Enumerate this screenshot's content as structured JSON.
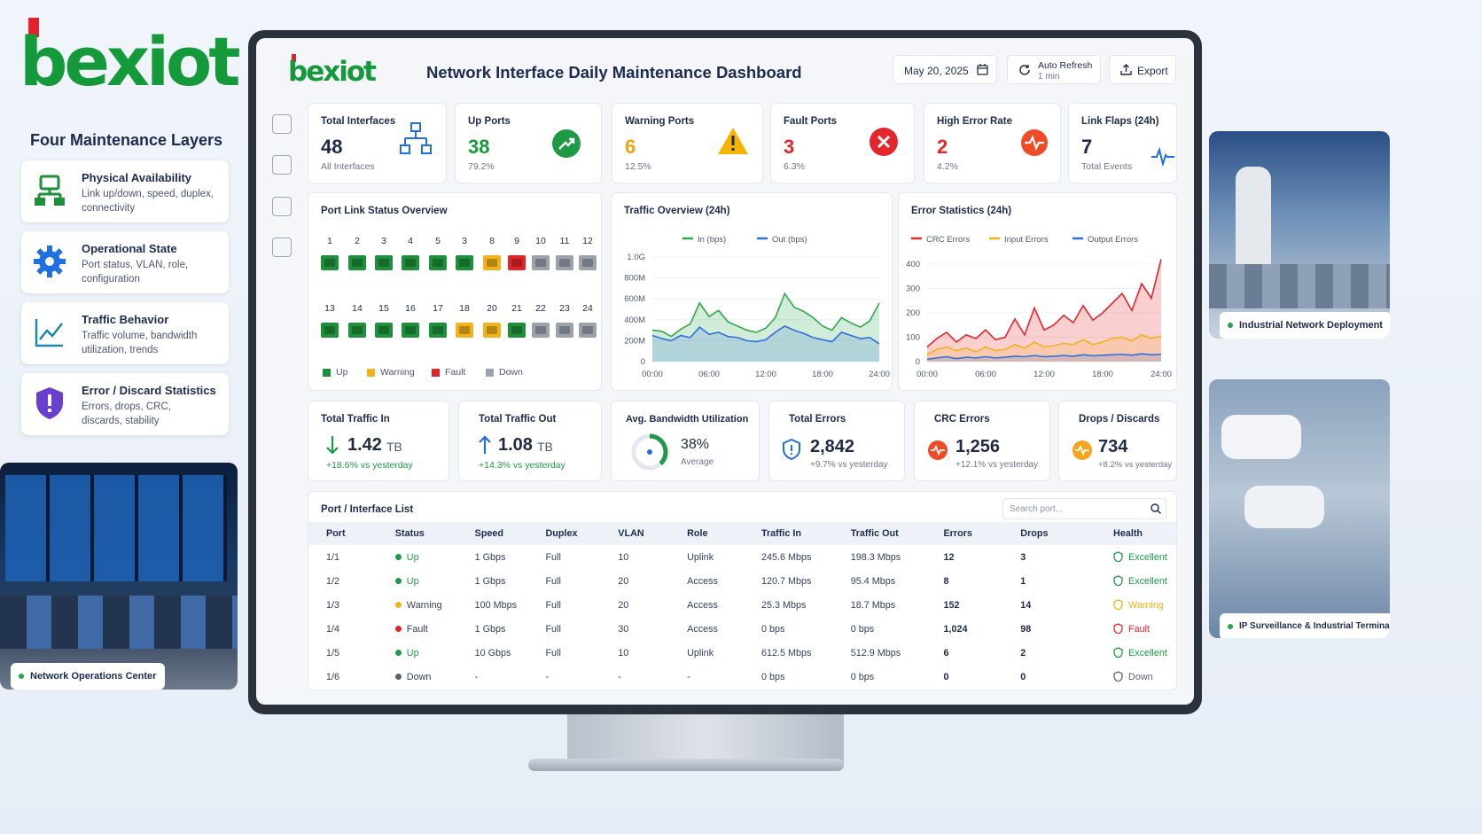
{
  "brand": {
    "name": "bexiot",
    "accent": "#159a3b",
    "logo_red": "#e3202c"
  },
  "left": {
    "title": "Four Maintenance Layers",
    "layers": [
      {
        "title": "Physical Availability",
        "desc": "Link up/down, speed, duplex, connectivity",
        "icon": "ethernet-icon"
      },
      {
        "title": "Operational State",
        "desc": "Port status, VLAN, role, configuration",
        "icon": "gear-icon"
      },
      {
        "title": "Traffic Behavior",
        "desc": "Traffic volume, bandwidth utilization, trends",
        "icon": "trend-icon"
      },
      {
        "title": "Error / Discard Statistics",
        "desc": "Errors, drops, CRC, discards, stability",
        "icon": "shield-alert-icon"
      }
    ],
    "photo_caption": "Network Operations Center"
  },
  "right": {
    "photo1_caption": "Industrial Network Deployment",
    "photo2_caption": "IP Surveillance & Industrial Terminals"
  },
  "header": {
    "title": "Network Interface Daily Maintenance Dashboard",
    "date": "May 20, 2025",
    "refresh_label": "Auto Refresh",
    "refresh_interval": "1 min",
    "export_label": "Export"
  },
  "kpis": [
    {
      "title": "Total Interfaces",
      "value": "48",
      "sub": "All Interfaces",
      "color": "#1c2b4f",
      "icon": "topology-icon"
    },
    {
      "title": "Up Ports",
      "value": "38",
      "sub": "79.2%",
      "color": "#159a3b",
      "icon": "trend-up-icon"
    },
    {
      "title": "Warning Ports",
      "value": "6",
      "sub": "12.5%",
      "color": "#f0a30a",
      "icon": "warning-icon"
    },
    {
      "title": "Fault Ports",
      "value": "3",
      "sub": "6.3%",
      "color": "#e2262b",
      "icon": "x-circle-icon"
    },
    {
      "title": "High Error Rate",
      "value": "2",
      "sub": "4.2%",
      "color": "#e2262b",
      "icon": "pulse-icon"
    },
    {
      "title": "Link Flaps (24h)",
      "value": "7",
      "sub": "Total Events",
      "color": "#1c2b4f",
      "icon": "heartbeat-icon"
    }
  ],
  "port_status": {
    "title": "Port Link Status Overview",
    "row1_labels": [
      "1",
      "2",
      "3",
      "4",
      "5",
      "3",
      "8",
      "9",
      "10",
      "11",
      "12"
    ],
    "row1_states": [
      "up",
      "up",
      "up",
      "up",
      "up",
      "up",
      "warning",
      "fault",
      "down",
      "down",
      "down"
    ],
    "row2_labels": [
      "13",
      "14",
      "15",
      "16",
      "17",
      "18",
      "20",
      "21",
      "22",
      "23",
      "24"
    ],
    "row2_states": [
      "up",
      "up",
      "up",
      "up",
      "up",
      "warning",
      "warning",
      "up",
      "down",
      "down",
      "down"
    ],
    "legend": [
      "Up",
      "Warning",
      "Fault",
      "Down"
    ],
    "colors": {
      "up": "#1e8f3a",
      "warning": "#f2b21b",
      "fault": "#e02428",
      "down": "#9ba2ad"
    }
  },
  "traffic_chart": {
    "title": "Traffic Overview (24h)",
    "chart_data": {
      "type": "area",
      "x": [
        0,
        1,
        2,
        3,
        4,
        5,
        6,
        7,
        8,
        9,
        10,
        11,
        12,
        13,
        14,
        15,
        16,
        17,
        18,
        19,
        20,
        21,
        22,
        23,
        24
      ],
      "xticks": [
        "00:00",
        "06:00",
        "12:00",
        "18:00",
        "24:00"
      ],
      "yticks": [
        "0",
        "200M",
        "400M",
        "600M",
        "800M",
        "1.0G"
      ],
      "ylim": [
        0,
        1000
      ],
      "series": [
        {
          "name": "In (bps)",
          "color": "#2fa84f",
          "values": [
            300,
            290,
            240,
            310,
            360,
            560,
            430,
            490,
            380,
            340,
            300,
            280,
            320,
            420,
            650,
            520,
            480,
            420,
            340,
            300,
            420,
            370,
            330,
            390,
            560
          ]
        },
        {
          "name": "Out (bps)",
          "color": "#2f6fde",
          "values": [
            250,
            220,
            200,
            250,
            230,
            330,
            260,
            280,
            240,
            230,
            200,
            190,
            210,
            280,
            340,
            300,
            270,
            230,
            210,
            190,
            280,
            250,
            220,
            230,
            170
          ]
        }
      ]
    }
  },
  "error_chart": {
    "title": "Error Statistics (24h)",
    "chart_data": {
      "type": "area",
      "x": [
        0,
        1,
        2,
        3,
        4,
        5,
        6,
        7,
        8,
        9,
        10,
        11,
        12,
        13,
        14,
        15,
        16,
        17,
        18,
        19,
        20,
        21,
        22,
        23,
        24
      ],
      "xticks": [
        "00:00",
        "06:00",
        "12:00",
        "18:00",
        "24:00"
      ],
      "yticks": [
        "0",
        "100",
        "200",
        "300",
        "400"
      ],
      "ylim": [
        0,
        400
      ],
      "series": [
        {
          "name": "CRC Errors",
          "color": "#e2262b",
          "values": [
            60,
            95,
            120,
            80,
            110,
            95,
            130,
            90,
            100,
            175,
            110,
            220,
            130,
            150,
            190,
            160,
            230,
            170,
            200,
            240,
            280,
            210,
            320,
            260,
            420
          ]
        },
        {
          "name": "Input Errors",
          "color": "#f2b21b",
          "values": [
            30,
            50,
            60,
            45,
            55,
            40,
            60,
            45,
            50,
            70,
            55,
            80,
            60,
            65,
            75,
            70,
            90,
            70,
            80,
            95,
            100,
            85,
            110,
            95,
            105
          ]
        },
        {
          "name": "Output Errors",
          "color": "#2f6fde",
          "values": [
            10,
            15,
            20,
            12,
            18,
            15,
            20,
            15,
            18,
            22,
            20,
            25,
            20,
            22,
            25,
            22,
            28,
            24,
            26,
            28,
            30,
            26,
            32,
            28,
            30
          ]
        }
      ]
    }
  },
  "summary": [
    {
      "title": "Total Traffic In",
      "value": "1.42",
      "unit": "TB",
      "delta": "+18.6% vs yesterday",
      "icon": "arrow-down-icon"
    },
    {
      "title": "Total Traffic Out",
      "value": "1.08",
      "unit": "TB",
      "delta": "+14.3% vs yesterday",
      "icon": "arrow-up-icon"
    },
    {
      "title": "Avg. Bandwidth Utilization",
      "value": "38%",
      "sub": "Average",
      "utilization": 0.38
    },
    {
      "title": "Total Errors",
      "value": "2,842",
      "delta": "+9.7% vs yesterday",
      "icon": "shield-icon"
    },
    {
      "title": "CRC Errors",
      "value": "1,256",
      "delta": "+12.1% vs yesterday",
      "icon": "pulse-icon"
    },
    {
      "title": "Drops / Discards",
      "value": "734",
      "delta": "+8.2% vs yesterday",
      "icon": "pulse-icon"
    }
  ],
  "port_list": {
    "title": "Port / Interface List",
    "search_placeholder": "Search port...",
    "columns": [
      "Port",
      "Status",
      "Speed",
      "Duplex",
      "VLAN",
      "Role",
      "Traffic In",
      "Traffic Out",
      "Errors",
      "Drops",
      "Health"
    ],
    "rows": [
      [
        "1/1",
        "Up",
        "1 Gbps",
        "Full",
        "10",
        "Uplink",
        "245.6 Mbps",
        "198.3 Mbps",
        "12",
        "3",
        "Excellent"
      ],
      [
        "1/2",
        "Up",
        "1 Gbps",
        "Full",
        "20",
        "Access",
        "120.7 Mbps",
        "95.4 Mbps",
        "8",
        "1",
        "Excellent"
      ],
      [
        "1/3",
        "Warning",
        "100 Mbps",
        "Full",
        "20",
        "Access",
        "25.3 Mbps",
        "18.7 Mbps",
        "152",
        "14",
        "Warning"
      ],
      [
        "1/4",
        "Fault",
        "1 Gbps",
        "Full",
        "30",
        "Access",
        "0 bps",
        "0 bps",
        "1,024",
        "98",
        "Fault"
      ],
      [
        "1/5",
        "Up",
        "10 Gbps",
        "Full",
        "10",
        "Uplink",
        "612.5 Mbps",
        "512.9 Mbps",
        "6",
        "2",
        "Excellent"
      ],
      [
        "1/6",
        "Down",
        "-",
        "-",
        "-",
        "-",
        "0 bps",
        "0 bps",
        "0",
        "0",
        "Down"
      ]
    ]
  }
}
